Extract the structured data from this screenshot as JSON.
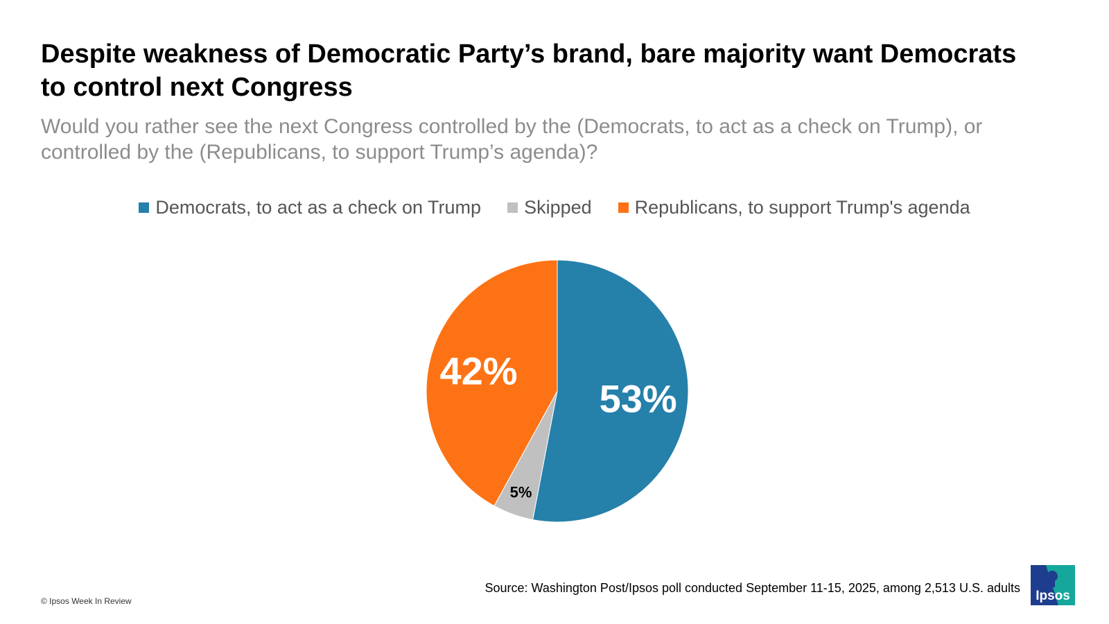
{
  "header": {
    "title": "Despite weakness of Democratic Party’s brand, bare majority want Democrats to control next Congress",
    "subtitle": "Would you rather see the next Congress controlled by the (Democrats, to act as a check on Trump), or controlled by the (Republicans, to support Trump’s agenda)?"
  },
  "chart_data": {
    "type": "pie",
    "title": "Despite weakness of Democratic Party’s brand, bare majority want Democrats to control next Congress",
    "legend_position": "top-center",
    "slices": [
      {
        "name": "Democrats, to act as a check on Trump",
        "value": 53,
        "label": "53%",
        "color": "#2580aa"
      },
      {
        "name": "Skipped",
        "value": 5,
        "label": "5%",
        "color": "#c0c0c0"
      },
      {
        "name": "Republicans, to support Trump's agenda",
        "value": 42,
        "label": "42%",
        "color": "#fd7214"
      }
    ]
  },
  "footer": {
    "source": "Source: Washington Post/Ipsos poll conducted September 11-15, 2025, among 2,513 U.S. adults",
    "copyright": "© Ipsos Week In Review",
    "logo_text": "Ipsos"
  }
}
